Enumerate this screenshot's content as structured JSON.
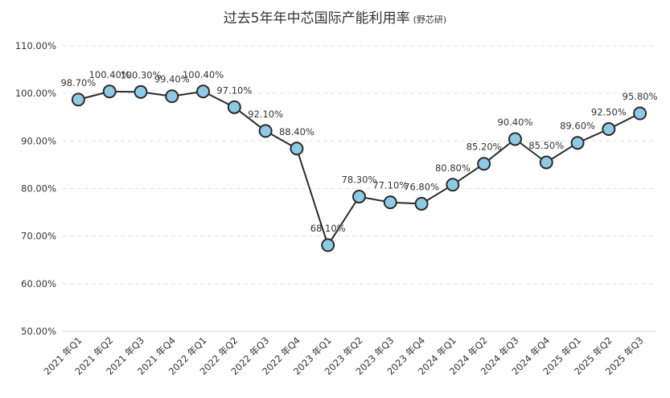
{
  "chart_data": {
    "type": "line",
    "title": "过去5年年中芯国际产能利用率",
    "subtitle": "(野芯研)",
    "xlabel": "",
    "ylabel": "",
    "categories": [
      "2021 年Q1",
      "2021 年Q2",
      "2021 年Q3",
      "2021 年Q4",
      "2022 年Q1",
      "2022 年Q2",
      "2022 年Q3",
      "2022 年Q4",
      "2023 年Q1",
      "2023 年Q2",
      "2023 年Q3",
      "2023 年Q4",
      "2024 年Q1",
      "2024 年Q2",
      "2024 年Q3",
      "2024 年Q4",
      "2025 年Q1",
      "2025 年Q2",
      "2025 年Q3"
    ],
    "series": [
      {
        "values": [
          98.7,
          100.4,
          100.3,
          99.4,
          100.4,
          97.1,
          92.1,
          88.4,
          68.1,
          78.3,
          77.1,
          76.8,
          80.8,
          85.2,
          90.4,
          85.5,
          89.6,
          92.5,
          95.8
        ],
        "data_labels": [
          "98.70%",
          "100.40%",
          "100.30%",
          "99.40%",
          "100.40%",
          "97.10%",
          "92.10%",
          "88.40%",
          "68.10%",
          "78.30%",
          "77.10%",
          "76.80%",
          "80.80%",
          "85.20%",
          "90.40%",
          "85.50%",
          "89.60%",
          "92.50%",
          "95.80%"
        ]
      }
    ],
    "ylim": [
      50,
      110
    ],
    "yticks": [
      50,
      60,
      70,
      80,
      90,
      100,
      110
    ],
    "ytick_labels": [
      "50.00%",
      "60.00%",
      "70.00%",
      "80.00%",
      "90.00%",
      "100.00%",
      "110.00%"
    ],
    "grid": true,
    "legend": "none",
    "colors": {
      "line": "#2b2b2b",
      "marker_fill": "#8ecae6",
      "marker_stroke": "#2b2b2b",
      "grid": "#e0e0e0",
      "text": "#333333"
    }
  }
}
